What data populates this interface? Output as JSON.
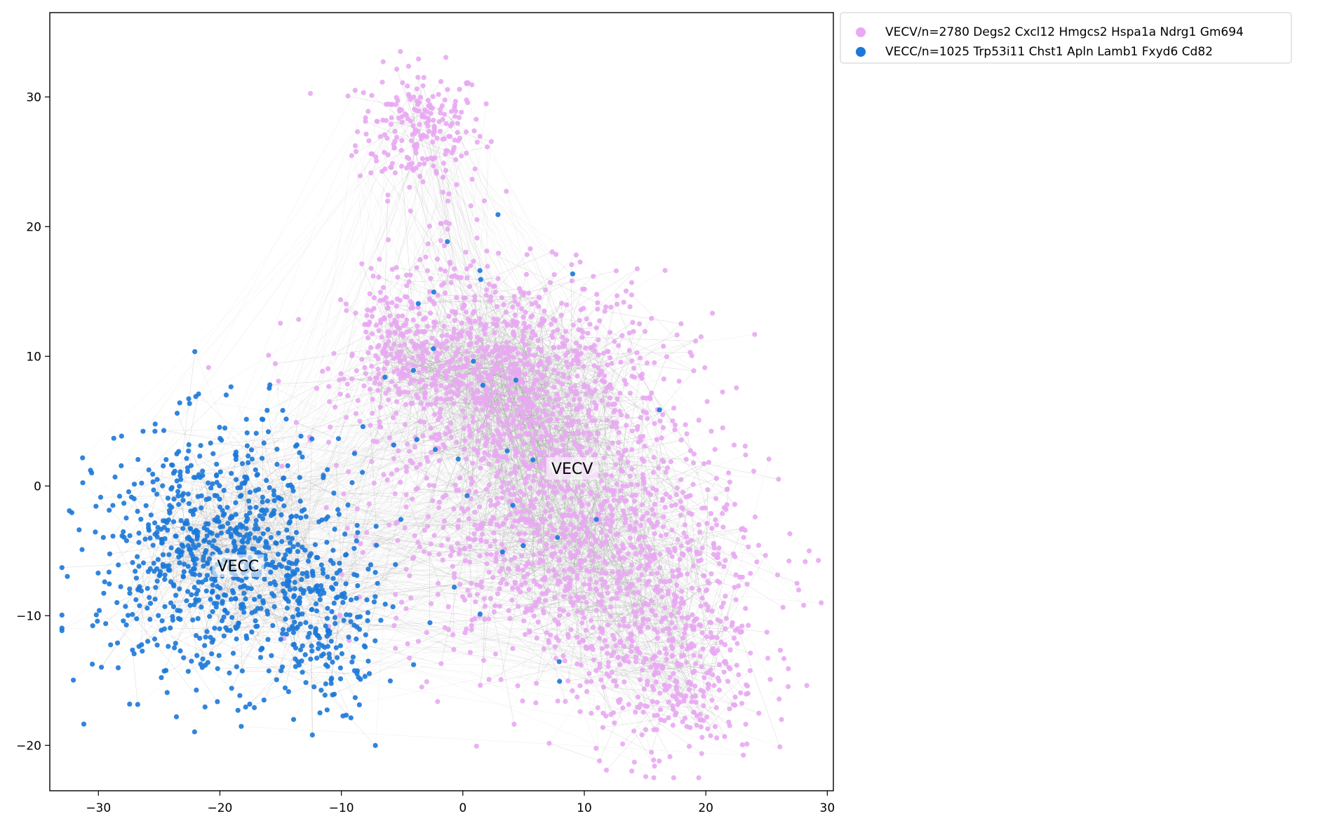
{
  "chart_data": {
    "type": "scatter",
    "title": "",
    "xlabel": "",
    "ylabel": "",
    "xlim": [
      -34,
      30.5
    ],
    "ylim": [
      -23.5,
      36.5
    ],
    "xticks": [
      -30,
      -20,
      -10,
      0,
      10,
      20,
      30
    ],
    "yticks": [
      -20,
      -10,
      0,
      10,
      20,
      30
    ],
    "xtick_labels": [
      "−30",
      "−20",
      "−10",
      "0",
      "10",
      "20",
      "30"
    ],
    "ytick_labels": [
      "−20",
      "−10",
      "0",
      "10",
      "20",
      "30"
    ],
    "grid": false,
    "legend_position": "outside-top-right",
    "edge_color": "#8c8c8c",
    "series": [
      {
        "name": "VECV/n=2780 Degs2 Cxcl12 Hmgcs2 Hspa1a Ndrg1 Gm694",
        "short_label": "VECV",
        "color": "#e8a9f2",
        "count": 2780,
        "label_position": [
          9,
          1.3
        ],
        "regions": [
          {
            "center": [
              -3.5,
              27.5
            ],
            "spread": [
              2.6,
              2.4
            ],
            "share": 0.08
          },
          {
            "center": [
              -1.5,
              18.5
            ],
            "spread": [
              1.6,
              2.0
            ],
            "share": 0.01
          },
          {
            "center": [
              3.5,
              8.5
            ],
            "spread": [
              6.5,
              4.0
            ],
            "share": 0.33
          },
          {
            "center": [
              8.5,
              -3.5
            ],
            "spread": [
              7.0,
              5.5
            ],
            "share": 0.38
          },
          {
            "center": [
              17.0,
              -13.0
            ],
            "spread": [
              3.8,
              4.2
            ],
            "share": 0.15
          },
          {
            "center": [
              -5.5,
              10.5
            ],
            "spread": [
              1.4,
              3.0
            ],
            "share": 0.05
          }
        ]
      },
      {
        "name": "VECC/n=1025 Trp53i11 Chst1 Apln Lamb1 Fxyd6 Cd82",
        "short_label": "VECC",
        "color": "#1b78d8",
        "count": 1025,
        "label_position": [
          -18.5,
          -6.2
        ],
        "regions": [
          {
            "center": [
              -20,
              -5.5
            ],
            "spread": [
              5.0,
              4.8
            ],
            "share": 0.8
          },
          {
            "center": [
              -11,
              -10.5
            ],
            "spread": [
              2.2,
              3.2
            ],
            "share": 0.17
          },
          {
            "center": [
              3,
              5
            ],
            "spread": [
              7.0,
              8.0
            ],
            "share": 0.03
          }
        ]
      }
    ]
  }
}
